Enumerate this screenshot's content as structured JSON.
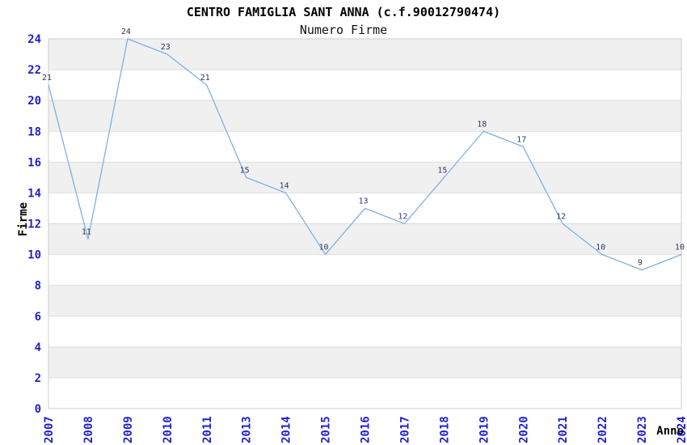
{
  "chart_data": {
    "type": "line",
    "title": "CENTRO FAMIGLIA SANT ANNA (c.f.90012790474)",
    "subtitle": "Numero Firme",
    "xlabel": "Anno",
    "ylabel": "Firme",
    "categories": [
      "2007",
      "2008",
      "2009",
      "2010",
      "2011",
      "2013",
      "2014",
      "2015",
      "2016",
      "2017",
      "2018",
      "2019",
      "2020",
      "2021",
      "2022",
      "2023",
      "2024"
    ],
    "values": [
      21,
      11,
      24,
      23,
      21,
      15,
      14,
      10,
      13,
      12,
      15,
      18,
      17,
      12,
      10,
      9,
      10
    ],
    "ylim": [
      0,
      24
    ],
    "ytick_step": 2,
    "legend": "none",
    "grid": "alternating-horizontal-bands",
    "data_labels": "shown above each point",
    "colors": {
      "line": "#7FB0E4",
      "data_label": "#333366",
      "axis_tick_label": "#2222CC",
      "band_dark": "#F0F0F0",
      "band_light": "#FFFFFF",
      "grid_line": "#DEDEDE",
      "plot_border": "#CCCCCC",
      "title_text": "#000000"
    }
  }
}
